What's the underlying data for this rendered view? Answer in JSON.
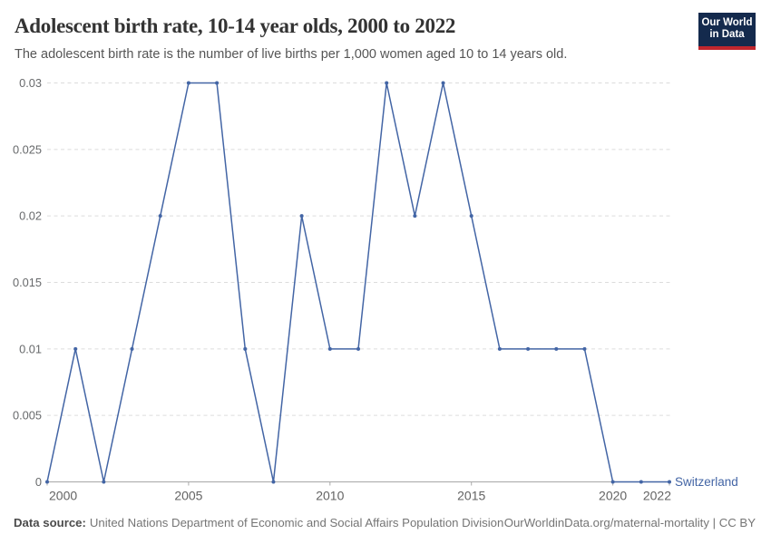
{
  "header": {
    "title": "Adolescent birth rate, 10-14 year olds, 2000 to 2022",
    "subtitle": "The adolescent birth rate is the number of live births per 1,000 women aged 10 to 14 years old.",
    "logo": {
      "line1": "Our World",
      "line2": "in Data",
      "bg_color": "#142a4d",
      "accent_color": "#c0262d"
    }
  },
  "chart_data": {
    "type": "line",
    "title": "Adolescent birth rate, 10-14 year olds, 2000 to 2022",
    "xlabel": "",
    "ylabel": "",
    "x": [
      2000,
      2001,
      2002,
      2003,
      2004,
      2005,
      2006,
      2007,
      2008,
      2009,
      2010,
      2011,
      2012,
      2013,
      2014,
      2015,
      2016,
      2017,
      2018,
      2019,
      2020,
      2021,
      2022
    ],
    "series": [
      {
        "name": "Switzerland",
        "color": "#4365a5",
        "values": [
          0,
          0.01,
          0,
          0.01,
          0.02,
          0.03,
          0.03,
          0.01,
          0,
          0.02,
          0.01,
          0.01,
          0.03,
          0.02,
          0.03,
          0.02,
          0.01,
          0.01,
          0.01,
          0.01,
          0,
          0,
          0
        ]
      }
    ],
    "xlim": [
      2000,
      2022
    ],
    "ylim": [
      0,
      0.03
    ],
    "yticks": [
      0,
      0.005,
      0.01,
      0.015,
      0.02,
      0.025,
      0.03
    ],
    "ytick_labels": [
      "0",
      "0.005",
      "0.01",
      "0.015",
      "0.02",
      "0.025",
      "0.03"
    ],
    "xticks": [
      2000,
      2005,
      2010,
      2015,
      2020,
      2022
    ],
    "grid": "horizontal-dashed",
    "legend_position": "end-of-line-label",
    "markers": true
  },
  "footer": {
    "source_label": "Data source:",
    "source_text": "United Nations Department of Economic and Social Affairs Population Division",
    "attribution": "OurWorldinData.org/maternal-mortality | CC BY"
  }
}
